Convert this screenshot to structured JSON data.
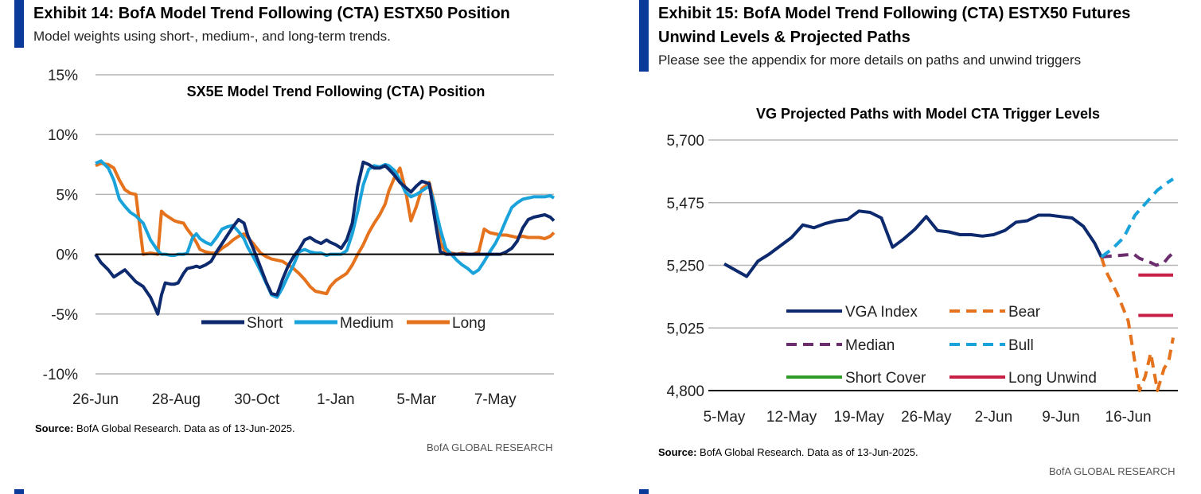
{
  "exhibit14": {
    "title": "Exhibit 14: BofA Model Trend Following (CTA) ESTX50 Position",
    "subtitle": "Model weights using short-, medium-, and long-term trends.",
    "source_label": "Source:",
    "source_text": "BofA Global Research.  Data as of 13-Jun-2025.",
    "credit": "BofA GLOBAL RESEARCH"
  },
  "exhibit15": {
    "title_line1": "Exhibit 15: BofA Model Trend Following (CTA) ESTX50 Futures",
    "title_line2": "Unwind Levels & Projected Paths",
    "subtitle": "Please see the appendix for more details on paths and unwind triggers",
    "source_label": "Source:",
    "source_text": "BofA Global Research.  Data as of 13-Jun-2025.",
    "credit": "BofA GLOBAL RESEARCH"
  },
  "colors": {
    "short": "#0d2a6e",
    "medium": "#1aa3db",
    "long": "#e5721c",
    "vga": "#0d2a6e",
    "bear": "#e5721c",
    "median": "#6b2d6e",
    "bull": "#1aa3db",
    "short_cover": "#2e9c27",
    "long_unwind": "#c81f46",
    "accent": "#0a3b9a"
  },
  "chart_data": [
    {
      "type": "line",
      "title": "SX5E Model Trend Following (CTA) Position",
      "xlabel": "",
      "ylabel": "",
      "ylim": [
        -10,
        15
      ],
      "yticks": [
        "15%",
        "10%",
        "5%",
        "0%",
        "-5%",
        "-10%"
      ],
      "ytick_values": [
        15,
        10,
        5,
        0,
        -5,
        -10
      ],
      "xlim": [
        0,
        250
      ],
      "xticks": [
        "26-Jun",
        "28-Aug",
        "30-Oct",
        "1-Jan",
        "5-Mar",
        "7-May"
      ],
      "xtick_values": [
        0,
        44,
        88,
        131,
        175,
        218
      ],
      "legend": [
        "Short",
        "Medium",
        "Long"
      ],
      "series": [
        {
          "name": "Short",
          "x": [
            0,
            3,
            7,
            10,
            13,
            16,
            19,
            22,
            26,
            30,
            34,
            36,
            38,
            41,
            43,
            45,
            48,
            50,
            53,
            55,
            57,
            60,
            63,
            66,
            69,
            72,
            75,
            78,
            81,
            83,
            86,
            88,
            90,
            93,
            96,
            99,
            102,
            105,
            108,
            111,
            114,
            117,
            120,
            123,
            126,
            128,
            131,
            134,
            137,
            140,
            143,
            146,
            149,
            152,
            155,
            158,
            160,
            163,
            166,
            169,
            172,
            175,
            178,
            180,
            182,
            185,
            188,
            191,
            194,
            197,
            200,
            203,
            206,
            209,
            212,
            215,
            218,
            221,
            224,
            227,
            230,
            233,
            236,
            239,
            242,
            245,
            248,
            250
          ],
          "y": [
            0.0,
            -0.7,
            -1.3,
            -1.9,
            -1.6,
            -1.3,
            -1.8,
            -2.3,
            -2.7,
            -3.6,
            -5.0,
            -3.4,
            -2.4,
            -2.5,
            -2.5,
            -2.4,
            -1.6,
            -1.2,
            -1.1,
            -1.0,
            -1.1,
            -0.9,
            -0.6,
            0.2,
            0.9,
            1.6,
            2.3,
            2.9,
            2.6,
            1.6,
            0.5,
            -0.3,
            -1.1,
            -2.3,
            -3.3,
            -3.4,
            -2.1,
            -1.0,
            -0.2,
            0.4,
            1.2,
            1.4,
            1.1,
            0.9,
            1.2,
            1.0,
            0.8,
            0.5,
            1.2,
            2.6,
            5.7,
            7.7,
            7.5,
            7.2,
            7.2,
            7.4,
            7.1,
            6.6,
            6.0,
            5.6,
            5.2,
            5.7,
            6.1,
            6.0,
            5.9,
            3.0,
            0.2,
            0.0,
            0.0,
            0.0,
            0.0,
            0.0,
            0.0,
            0.0,
            0.0,
            0.0,
            0.0,
            0.0,
            0.2,
            0.5,
            1.1,
            2.2,
            2.9,
            3.1,
            3.2,
            3.3,
            3.1,
            2.8
          ]
        },
        {
          "name": "Medium",
          "x": [
            0,
            3,
            7,
            10,
            13,
            16,
            19,
            22,
            26,
            30,
            34,
            36,
            38,
            41,
            43,
            45,
            48,
            50,
            53,
            55,
            57,
            60,
            63,
            66,
            69,
            72,
            75,
            78,
            81,
            83,
            86,
            88,
            90,
            93,
            96,
            99,
            102,
            105,
            108,
            111,
            114,
            117,
            120,
            123,
            126,
            128,
            131,
            134,
            137,
            140,
            143,
            146,
            149,
            152,
            155,
            158,
            160,
            163,
            166,
            169,
            172,
            175,
            178,
            180,
            182,
            185,
            188,
            191,
            194,
            197,
            200,
            203,
            206,
            209,
            212,
            215,
            218,
            221,
            224,
            227,
            230,
            233,
            236,
            239,
            242,
            245,
            248,
            250
          ],
          "y": [
            7.6,
            7.8,
            7.2,
            6.2,
            4.6,
            4.0,
            3.5,
            3.2,
            2.6,
            1.2,
            0.3,
            0.0,
            0.0,
            -0.1,
            -0.1,
            0.0,
            0.0,
            0.1,
            1.4,
            1.7,
            1.3,
            1.0,
            0.8,
            1.4,
            2.1,
            2.3,
            2.4,
            1.9,
            1.3,
            0.6,
            -0.2,
            -0.8,
            -1.4,
            -2.4,
            -3.4,
            -3.6,
            -2.8,
            -1.8,
            -0.9,
            0.2,
            0.4,
            0.2,
            0.1,
            0.1,
            -0.1,
            0.0,
            0.0,
            0.0,
            0.3,
            1.7,
            3.6,
            5.8,
            7.1,
            7.4,
            7.3,
            7.5,
            7.4,
            7.0,
            6.2,
            5.2,
            4.8,
            5.0,
            5.3,
            5.5,
            5.7,
            4.1,
            2.1,
            0.5,
            0.0,
            -0.5,
            -0.9,
            -1.2,
            -1.6,
            -1.3,
            -0.6,
            0.2,
            0.9,
            1.8,
            2.9,
            3.9,
            4.3,
            4.6,
            4.7,
            4.8,
            4.8,
            4.8,
            4.9,
            4.7
          ]
        },
        {
          "name": "Long",
          "x": [
            0,
            3,
            7,
            10,
            13,
            16,
            19,
            22,
            26,
            30,
            34,
            36,
            38,
            41,
            43,
            45,
            48,
            50,
            53,
            55,
            57,
            60,
            63,
            66,
            69,
            72,
            75,
            78,
            81,
            83,
            86,
            88,
            90,
            93,
            96,
            99,
            102,
            105,
            108,
            111,
            114,
            117,
            120,
            123,
            126,
            128,
            131,
            134,
            137,
            140,
            143,
            146,
            149,
            152,
            155,
            158,
            160,
            163,
            166,
            169,
            172,
            175,
            178,
            180,
            182,
            185,
            188,
            191,
            194,
            197,
            200,
            203,
            206,
            209,
            212,
            215,
            218,
            221,
            224,
            227,
            230,
            233,
            236,
            239,
            242,
            245,
            248,
            250
          ],
          "y": [
            7.4,
            7.6,
            7.5,
            7.2,
            6.2,
            5.4,
            5.1,
            5.0,
            0.0,
            0.1,
            0.0,
            3.6,
            3.3,
            3.0,
            2.8,
            2.7,
            2.6,
            2.1,
            1.5,
            1.0,
            0.4,
            0.2,
            0.1,
            0.1,
            0.5,
            0.8,
            1.2,
            1.5,
            1.7,
            1.4,
            0.9,
            0.5,
            0.1,
            -0.2,
            -0.4,
            -0.5,
            -0.6,
            -0.9,
            -1.2,
            -1.6,
            -2.1,
            -2.7,
            -3.1,
            -3.2,
            -3.3,
            -2.7,
            -2.2,
            -1.9,
            -1.6,
            -0.9,
            0.0,
            0.8,
            1.8,
            2.6,
            3.3,
            4.2,
            5.3,
            6.4,
            7.2,
            5.4,
            2.8,
            4.0,
            5.5,
            5.7,
            6.0,
            4.1,
            1.0,
            0.1,
            0.1,
            0.0,
            0.1,
            0.0,
            0.0,
            0.2,
            2.1,
            1.8,
            1.7,
            1.6,
            1.6,
            1.5,
            1.4,
            1.5,
            1.4,
            1.4,
            1.4,
            1.3,
            1.5,
            1.8
          ]
        }
      ]
    },
    {
      "type": "line",
      "title": "VG Projected Paths with Model CTA Trigger Levels",
      "xlabel": "",
      "ylabel": "",
      "ylim": [
        4800,
        5700
      ],
      "yticks": [
        "5,700",
        "5,475",
        "5,250",
        "5,025",
        "4,800"
      ],
      "ytick_values": [
        5700,
        5475,
        5250,
        5025,
        4800
      ],
      "xlim": [
        0,
        40
      ],
      "xticks": [
        "5-May",
        "12-May",
        "19-May",
        "26-May",
        "2-Jun",
        "9-Jun",
        "16-Jun"
      ],
      "xtick_values": [
        0,
        6,
        12,
        18,
        24,
        30,
        36
      ],
      "legend": [
        "VGA Index",
        "Bear",
        "Median",
        "Bull",
        "Short Cover",
        "Long Unwind"
      ],
      "series": [
        {
          "name": "VGA Index",
          "style": "solid",
          "x": [
            0,
            2,
            3,
            4,
            6,
            7,
            8,
            9,
            10,
            11,
            12,
            13,
            14,
            15,
            16,
            17,
            18,
            19,
            20,
            21,
            22,
            23,
            24,
            25,
            26,
            27,
            28,
            29,
            30,
            31,
            32,
            33,
            33.6
          ],
          "y": [
            5255,
            5210,
            5265,
            5290,
            5350,
            5395,
            5385,
            5400,
            5410,
            5415,
            5445,
            5440,
            5420,
            5315,
            5345,
            5380,
            5425,
            5375,
            5370,
            5360,
            5360,
            5355,
            5360,
            5375,
            5405,
            5410,
            5430,
            5430,
            5425,
            5420,
            5390,
            5330,
            5280
          ]
        },
        {
          "name": "Bear",
          "style": "dashed",
          "x": [
            33.6,
            34,
            35,
            36,
            37,
            37.5,
            38,
            38.6,
            39.2,
            39.6,
            40
          ],
          "y": [
            5280,
            5230,
            5150,
            5050,
            4800,
            4850,
            4935,
            4800,
            4880,
            4905,
            4990
          ]
        },
        {
          "name": "Median",
          "style": "dashed",
          "x": [
            33.6,
            35,
            36.5,
            37,
            38,
            38.5,
            39.2,
            39.6,
            40
          ],
          "y": [
            5280,
            5285,
            5290,
            5275,
            5260,
            5250,
            5260,
            5280,
            5295
          ]
        },
        {
          "name": "Bull",
          "style": "dashed",
          "x": [
            33.6,
            34.6,
            35.6,
            36.6,
            37.6,
            38.6,
            39.6,
            40
          ],
          "y": [
            5280,
            5310,
            5350,
            5430,
            5475,
            5520,
            5550,
            5560
          ]
        },
        {
          "name": "Short Cover",
          "style": "solid",
          "x": [],
          "y": []
        },
        {
          "name": "Long Unwind",
          "style": "solid",
          "segments": [
            {
              "x": [
                36.9,
                40
              ],
              "y": [
                5215,
                5215
              ]
            },
            {
              "x": [
                36.9,
                40
              ],
              "y": [
                5070,
                5070
              ]
            }
          ]
        }
      ]
    }
  ]
}
